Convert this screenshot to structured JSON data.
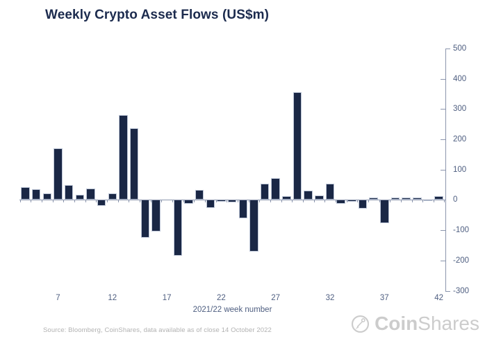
{
  "page": {
    "title": "Weekly Crypto Asset Flows (US$m)"
  },
  "chart_data": {
    "type": "bar",
    "title": "Weekly Crypto Asset Flows (US$m)",
    "xlabel": "2021/22 week number",
    "x": [
      4,
      5,
      6,
      7,
      8,
      9,
      10,
      11,
      12,
      13,
      14,
      15,
      16,
      17,
      18,
      19,
      20,
      21,
      22,
      23,
      24,
      25,
      26,
      27,
      28,
      29,
      30,
      31,
      32,
      33,
      34,
      35,
      36,
      37,
      38,
      39,
      40,
      41,
      42
    ],
    "values": [
      43,
      36,
      21,
      171,
      50,
      16,
      37,
      -19,
      21,
      281,
      236,
      -126,
      -105,
      0,
      -185,
      -14,
      33,
      -26,
      -6,
      -8,
      -60,
      -171,
      54,
      73,
      12,
      355,
      31,
      15,
      54,
      -12,
      -7,
      -28,
      9,
      -76,
      8,
      7,
      9,
      -2,
      13
    ],
    "x_tick_labels": [
      "7",
      "12",
      "17",
      "22",
      "27",
      "32",
      "37",
      "42"
    ],
    "y_ticks": [
      500,
      400,
      300,
      200,
      100,
      0,
      -100,
      -200,
      -300
    ],
    "ylim": [
      -300,
      500
    ],
    "grid": false,
    "legend": false,
    "y_axis_side": "right",
    "colors": {
      "bar": "#1a2745",
      "bar_border": "#bcc5d6",
      "axis": "#8a94ac",
      "tick_label": "#4e5e80",
      "title": "#1c2b4e"
    }
  },
  "footer": {
    "source": "Source: Bloomberg, CoinShares, data available as of close 14 October 2022",
    "logo": {
      "bold": "Coin",
      "light": "Shares"
    }
  }
}
